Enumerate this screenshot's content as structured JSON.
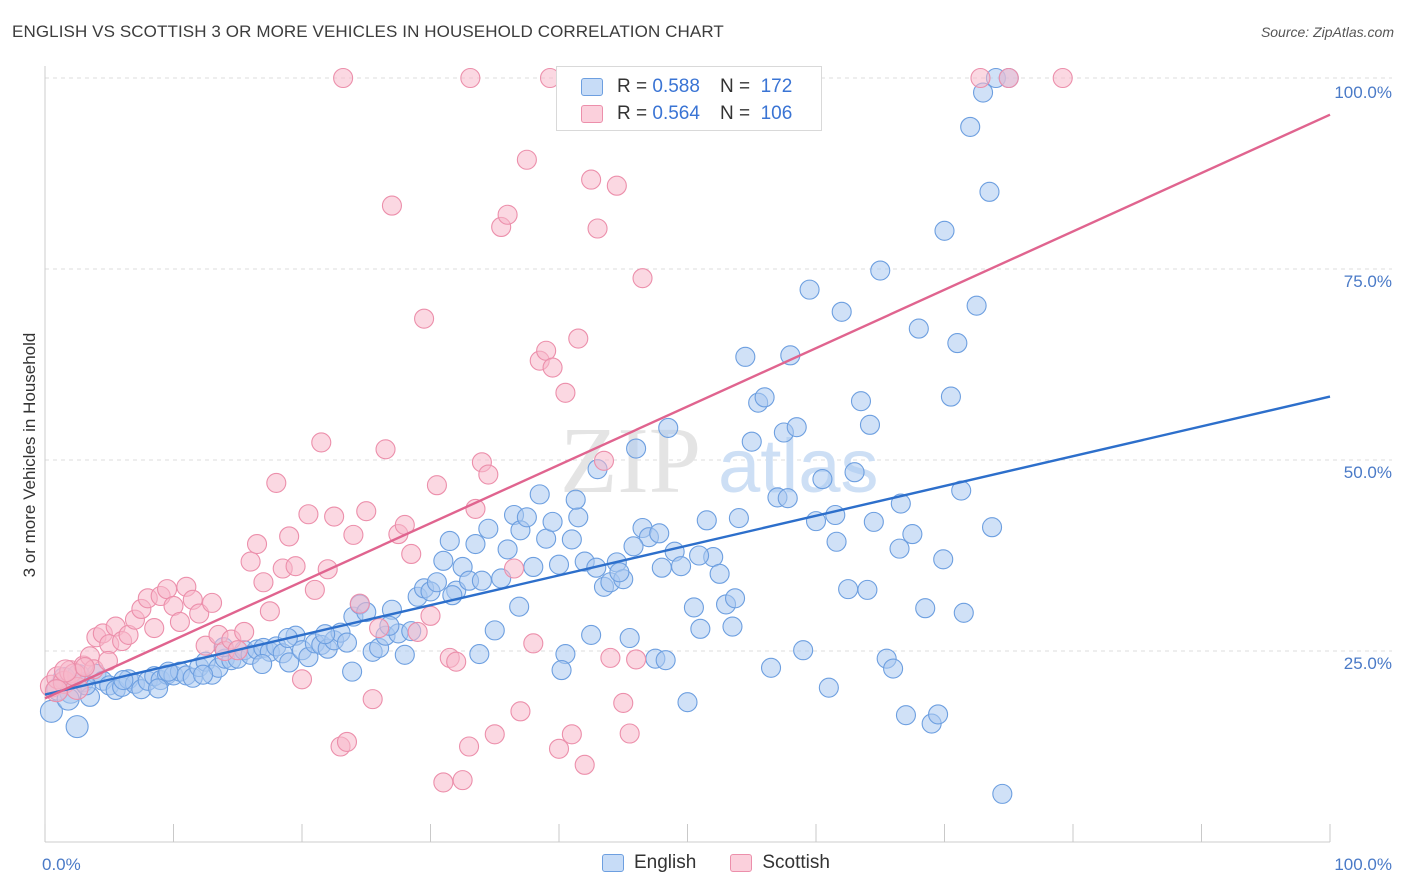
{
  "title": "ENGLISH VS SCOTTISH 3 OR MORE VEHICLES IN HOUSEHOLD CORRELATION CHART",
  "source": "Source: ZipAtlas.com",
  "watermark": {
    "zip": "ZIP",
    "atlas": "atlas"
  },
  "colors": {
    "english_fill": "#a9c8f0",
    "english_stroke": "#6d9fe0",
    "english_line": "#2d6fcb",
    "scottish_fill": "#f7b8cb",
    "scottish_stroke": "#ec8fab",
    "scottish_line": "#e0648f",
    "accent_text": "#3a74d4",
    "grid": "#dddddd"
  },
  "legend": {
    "english": {
      "r_label": "R =",
      "r_value": "0.588",
      "n_label": "N =",
      "n_value": "172"
    },
    "scottish": {
      "r_label": "R =",
      "r_value": "0.564",
      "n_label": "N =",
      "n_value": "106"
    }
  },
  "bottom_legend": {
    "english": "English",
    "scottish": "Scottish"
  },
  "chart_data": {
    "type": "scatter",
    "title": "ENGLISH VS SCOTTISH 3 OR MORE VEHICLES IN HOUSEHOLD CORRELATION CHART",
    "xlabel": "",
    "ylabel": "3 or more Vehicles in Household",
    "xlim": [
      0,
      100
    ],
    "ylim": [
      0,
      100
    ],
    "x_tick_labels": [
      "0.0%",
      "100.0%"
    ],
    "y_tick_labels": [
      "25.0%",
      "50.0%",
      "75.0%",
      "100.0%"
    ],
    "y_ticks": [
      25,
      50,
      75,
      100
    ],
    "grid": "horizontal dashed",
    "legend_position": "top-center",
    "series": [
      {
        "name": "English",
        "r": 0.588,
        "n": 172,
        "trend": {
          "x": [
            0,
            100
          ],
          "y": [
            19.3,
            58.3
          ]
        },
        "points": [
          [
            0.5,
            17.1
          ],
          [
            1.0,
            20.0
          ],
          [
            1.5,
            21.4
          ],
          [
            2.0,
            19.6
          ],
          [
            2.5,
            15.1
          ],
          [
            3.0,
            20.9
          ],
          [
            3.5,
            19.0
          ],
          [
            4.0,
            22.0
          ],
          [
            4.5,
            21.1
          ],
          [
            5.0,
            20.5
          ],
          [
            5.5,
            19.9
          ],
          [
            6.0,
            20.3
          ],
          [
            6.5,
            21.3
          ],
          [
            7.0,
            20.7
          ],
          [
            7.5,
            20.0
          ],
          [
            8.0,
            21.1
          ],
          [
            8.5,
            21.7
          ],
          [
            9.0,
            21.2
          ],
          [
            9.5,
            21.9
          ],
          [
            10.0,
            21.8
          ],
          [
            10.5,
            22.3
          ],
          [
            11.0,
            21.8
          ],
          [
            11.5,
            21.5
          ],
          [
            12.0,
            22.9
          ],
          [
            12.5,
            23.6
          ],
          [
            13.0,
            21.9
          ],
          [
            13.5,
            22.8
          ],
          [
            14.0,
            24.0
          ],
          [
            14.5,
            23.8
          ],
          [
            15.0,
            24.0
          ],
          [
            15.5,
            25.1
          ],
          [
            16.0,
            24.5
          ],
          [
            16.5,
            25.2
          ],
          [
            17.0,
            25.4
          ],
          [
            17.5,
            24.9
          ],
          [
            18.0,
            25.6
          ],
          [
            18.5,
            24.7
          ],
          [
            19.0,
            23.5
          ],
          [
            19.5,
            27.0
          ],
          [
            20.0,
            25.1
          ],
          [
            20.5,
            24.2
          ],
          [
            21.0,
            26.0
          ],
          [
            21.5,
            25.8
          ],
          [
            22.0,
            25.3
          ],
          [
            22.5,
            26.4
          ],
          [
            23.0,
            27.4
          ],
          [
            23.5,
            26.1
          ],
          [
            24.0,
            29.5
          ],
          [
            24.5,
            31.1
          ],
          [
            25.0,
            30.1
          ],
          [
            25.5,
            24.9
          ],
          [
            26.0,
            25.4
          ],
          [
            26.5,
            27.0
          ],
          [
            27.0,
            30.4
          ],
          [
            27.5,
            27.3
          ],
          [
            28.0,
            24.5
          ],
          [
            28.5,
            27.6
          ],
          [
            29.0,
            32.1
          ],
          [
            29.5,
            33.2
          ],
          [
            30.0,
            32.8
          ],
          [
            30.5,
            34.0
          ],
          [
            31.0,
            36.8
          ],
          [
            31.5,
            39.4
          ],
          [
            32.0,
            32.9
          ],
          [
            32.5,
            36.0
          ],
          [
            33.0,
            34.2
          ],
          [
            33.5,
            39.0
          ],
          [
            34.0,
            34.2
          ],
          [
            34.5,
            41.0
          ],
          [
            35.0,
            27.7
          ],
          [
            35.5,
            34.5
          ],
          [
            36.0,
            38.3
          ],
          [
            36.5,
            42.8
          ],
          [
            37.0,
            40.8
          ],
          [
            37.5,
            42.5
          ],
          [
            38.0,
            36.0
          ],
          [
            38.5,
            45.5
          ],
          [
            39.0,
            39.7
          ],
          [
            39.5,
            41.9
          ],
          [
            40.0,
            36.3
          ],
          [
            40.5,
            24.6
          ],
          [
            41.0,
            39.6
          ],
          [
            41.5,
            42.5
          ],
          [
            42.0,
            36.7
          ],
          [
            42.5,
            27.1
          ],
          [
            43.0,
            48.8
          ],
          [
            43.5,
            33.4
          ],
          [
            44.0,
            34.0
          ],
          [
            44.5,
            36.6
          ],
          [
            45.0,
            34.4
          ],
          [
            45.5,
            26.7
          ],
          [
            46.0,
            51.5
          ],
          [
            46.5,
            41.1
          ],
          [
            47.0,
            39.9
          ],
          [
            47.5,
            24.0
          ],
          [
            48.0,
            35.9
          ],
          [
            48.5,
            54.2
          ],
          [
            49.0,
            38.0
          ],
          [
            49.5,
            36.1
          ],
          [
            50.0,
            18.3
          ],
          [
            50.5,
            30.7
          ],
          [
            51.0,
            27.9
          ],
          [
            51.5,
            42.1
          ],
          [
            52.0,
            37.3
          ],
          [
            52.5,
            35.1
          ],
          [
            53.0,
            31.1
          ],
          [
            53.5,
            28.2
          ],
          [
            54.0,
            42.4
          ],
          [
            54.5,
            63.5
          ],
          [
            55.0,
            52.4
          ],
          [
            55.5,
            57.5
          ],
          [
            56.0,
            58.2
          ],
          [
            56.5,
            22.8
          ],
          [
            57.0,
            45.1
          ],
          [
            57.5,
            53.6
          ],
          [
            58.0,
            63.7
          ],
          [
            58.5,
            54.3
          ],
          [
            59.0,
            25.1
          ],
          [
            59.5,
            72.3
          ],
          [
            60.0,
            42.0
          ],
          [
            60.5,
            47.5
          ],
          [
            61.0,
            20.2
          ],
          [
            61.5,
            42.8
          ],
          [
            62.0,
            69.4
          ],
          [
            62.5,
            33.1
          ],
          [
            63.0,
            48.4
          ],
          [
            63.5,
            57.7
          ],
          [
            64.0,
            33.0
          ],
          [
            64.5,
            41.9
          ],
          [
            65.0,
            74.8
          ],
          [
            65.5,
            24.0
          ],
          [
            66.0,
            22.7
          ],
          [
            66.5,
            38.4
          ],
          [
            67.0,
            16.6
          ],
          [
            67.5,
            40.3
          ],
          [
            68.0,
            67.2
          ],
          [
            68.5,
            30.6
          ],
          [
            69.0,
            15.5
          ],
          [
            69.5,
            16.7
          ],
          [
            70.0,
            80.0
          ],
          [
            70.5,
            58.3
          ],
          [
            71.0,
            65.3
          ],
          [
            71.5,
            30.0
          ],
          [
            72.0,
            93.6
          ],
          [
            72.5,
            70.2
          ],
          [
            73.0,
            98.1
          ],
          [
            73.5,
            85.1
          ],
          [
            74.0,
            100.0
          ],
          [
            74.5,
            6.3
          ],
          [
            75.0,
            100.0
          ],
          [
            48.3,
            23.8
          ],
          [
            47.8,
            40.4
          ],
          [
            44.7,
            35.3
          ],
          [
            40.2,
            22.5
          ],
          [
            33.8,
            24.6
          ],
          [
            23.9,
            22.3
          ],
          [
            16.9,
            23.3
          ],
          [
            12.3,
            21.9
          ],
          [
            8.8,
            20.1
          ],
          [
            6.1,
            21.2
          ],
          [
            3.2,
            20.5
          ],
          [
            1.8,
            18.7
          ],
          [
            2.6,
            21.8
          ],
          [
            9.6,
            22.3
          ],
          [
            13.9,
            25.5
          ],
          [
            18.9,
            26.7
          ],
          [
            21.8,
            27.2
          ],
          [
            26.8,
            28.3
          ],
          [
            31.7,
            32.3
          ],
          [
            36.9,
            30.8
          ],
          [
            41.3,
            44.8
          ],
          [
            42.9,
            35.9
          ],
          [
            45.8,
            38.7
          ],
          [
            50.9,
            37.5
          ],
          [
            53.7,
            31.9
          ],
          [
            57.8,
            45.0
          ],
          [
            61.6,
            39.3
          ],
          [
            64.2,
            54.6
          ],
          [
            66.6,
            44.3
          ],
          [
            69.9,
            37.0
          ],
          [
            71.3,
            46.0
          ],
          [
            73.7,
            41.2
          ]
        ]
      },
      {
        "name": "Scottish",
        "r": 0.564,
        "n": 106,
        "trend": {
          "x": [
            0,
            100
          ],
          "y": [
            18.8,
            95.2
          ]
        },
        "points": [
          [
            0.5,
            20.4
          ],
          [
            1.0,
            21.5
          ],
          [
            1.5,
            20.9
          ],
          [
            2.0,
            22.3
          ],
          [
            2.5,
            20.1
          ],
          [
            3.0,
            23.1
          ],
          [
            3.5,
            24.3
          ],
          [
            4.0,
            26.8
          ],
          [
            4.5,
            27.3
          ],
          [
            5.0,
            25.9
          ],
          [
            5.5,
            28.2
          ],
          [
            6.0,
            26.3
          ],
          [
            6.5,
            27.1
          ],
          [
            7.0,
            29.1
          ],
          [
            7.5,
            30.5
          ],
          [
            8.0,
            31.9
          ],
          [
            8.5,
            28.0
          ],
          [
            9.0,
            32.2
          ],
          [
            9.5,
            33.1
          ],
          [
            10.0,
            30.9
          ],
          [
            10.5,
            28.8
          ],
          [
            11.0,
            33.4
          ],
          [
            11.5,
            31.7
          ],
          [
            12.0,
            29.9
          ],
          [
            12.5,
            25.7
          ],
          [
            13.0,
            31.3
          ],
          [
            13.5,
            27.1
          ],
          [
            14.0,
            25.0
          ],
          [
            14.5,
            26.5
          ],
          [
            15.0,
            25.1
          ],
          [
            15.5,
            27.5
          ],
          [
            16.0,
            36.7
          ],
          [
            16.5,
            39.0
          ],
          [
            17.0,
            34.0
          ],
          [
            17.5,
            30.2
          ],
          [
            18.0,
            47.0
          ],
          [
            18.5,
            35.8
          ],
          [
            19.0,
            40.0
          ],
          [
            19.5,
            36.1
          ],
          [
            20.0,
            21.3
          ],
          [
            20.5,
            42.9
          ],
          [
            21.0,
            33.0
          ],
          [
            21.5,
            52.3
          ],
          [
            22.0,
            35.7
          ],
          [
            22.5,
            42.6
          ],
          [
            23.0,
            12.5
          ],
          [
            23.5,
            13.1
          ],
          [
            24.0,
            40.2
          ],
          [
            24.5,
            31.2
          ],
          [
            25.0,
            43.3
          ],
          [
            25.5,
            18.7
          ],
          [
            26.0,
            28.0
          ],
          [
            26.5,
            51.4
          ],
          [
            27.0,
            83.3
          ],
          [
            27.5,
            40.3
          ],
          [
            28.0,
            41.5
          ],
          [
            28.5,
            37.7
          ],
          [
            29.0,
            27.5
          ],
          [
            29.5,
            68.5
          ],
          [
            30.0,
            29.6
          ],
          [
            30.5,
            46.7
          ],
          [
            31.0,
            7.8
          ],
          [
            31.5,
            24.1
          ],
          [
            32.0,
            23.6
          ],
          [
            32.5,
            8.1
          ],
          [
            33.0,
            12.5
          ],
          [
            33.5,
            43.6
          ],
          [
            34.0,
            49.7
          ],
          [
            34.5,
            48.1
          ],
          [
            35.0,
            14.1
          ],
          [
            35.5,
            80.5
          ],
          [
            36.0,
            82.1
          ],
          [
            36.5,
            35.8
          ],
          [
            37.0,
            17.1
          ],
          [
            37.5,
            89.3
          ],
          [
            38.0,
            26.0
          ],
          [
            38.5,
            63.0
          ],
          [
            39.0,
            64.3
          ],
          [
            39.5,
            62.1
          ],
          [
            40.0,
            12.2
          ],
          [
            40.5,
            58.8
          ],
          [
            41.0,
            14.1
          ],
          [
            41.5,
            65.9
          ],
          [
            42.0,
            10.1
          ],
          [
            42.5,
            86.7
          ],
          [
            43.0,
            80.3
          ],
          [
            43.5,
            49.9
          ],
          [
            44.0,
            24.1
          ],
          [
            44.5,
            85.9
          ],
          [
            45.0,
            18.2
          ],
          [
            45.5,
            14.2
          ],
          [
            46.0,
            23.9
          ],
          [
            46.5,
            73.8
          ],
          [
            33.1,
            100.0
          ],
          [
            39.3,
            100.0
          ],
          [
            72.8,
            100.0
          ],
          [
            79.2,
            100.0
          ],
          [
            59.6,
            100.0
          ],
          [
            23.2,
            100.0
          ],
          [
            75.0,
            100.0
          ],
          [
            2.3,
            21.9
          ],
          [
            3.8,
            22.6
          ],
          [
            1.6,
            22.4
          ],
          [
            0.9,
            19.8
          ],
          [
            3.1,
            22.9
          ],
          [
            4.9,
            23.7
          ]
        ]
      }
    ]
  }
}
